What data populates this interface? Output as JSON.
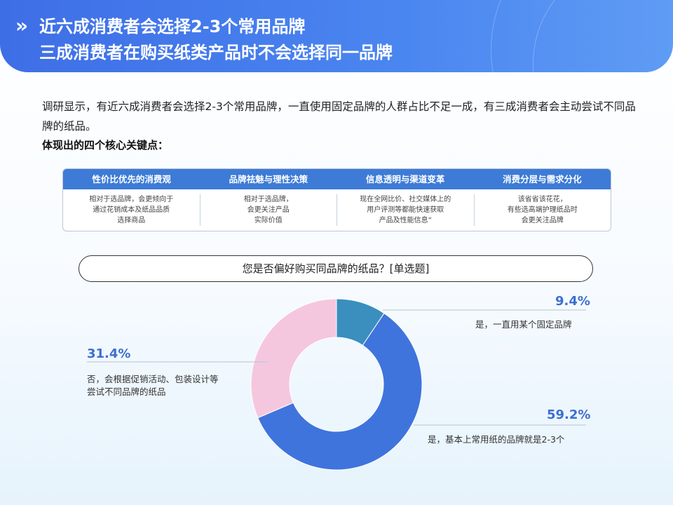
{
  "header": {
    "chevron": "»",
    "title_line1": "近六成消费者会选择2-3个常用品牌",
    "title_line2": "三成消费者在购买纸类产品时不会选择同一品牌"
  },
  "intro": {
    "text": "调研显示，有近六成消费者会选择2-3个常用品牌，一直使用固定品牌的人群占比不足一成，有三成消费者会主动尝试不同品牌的纸品。",
    "subhead": "体现出的四个核心关键点："
  },
  "key_points": [
    {
      "title": "性价比优先的消费观",
      "desc": "相对于选品牌，会更倾向于\n通过花销成本及纸品品质\n选择商品"
    },
    {
      "title": "品牌祛魅与理性决策",
      "desc": "相对于选品牌，\n会更关注产品\n实际价值"
    },
    {
      "title": "信息透明与渠道变革",
      "desc": "现在全网比价、社交媒体上的\n用户评测等都能快速获取\n产品及性能信息”"
    },
    {
      "title": "消费分层与需求分化",
      "desc": "该省省该花花，\n有些选高端护理纸品时\n会更关注品牌"
    }
  ],
  "question": "您是否偏好购买同品牌的纸品？[单选题]",
  "chart_data": {
    "type": "pie",
    "donut": true,
    "title": "您是否偏好购买同品牌的纸品？[单选题]",
    "slices": [
      {
        "label": "是，一直用某个固定品牌",
        "value": 9.4,
        "display": "9.4%",
        "color": "#3a8fbf"
      },
      {
        "label": "是，基本上常用纸的品牌就是2-3个",
        "value": 59.2,
        "display": "59.2%",
        "color": "#3f74dd"
      },
      {
        "label": "否，会根据促销活动、包装设计等尝试不同品牌的纸品",
        "value": 31.4,
        "display": "31.4%",
        "color": "#f5c7df"
      }
    ],
    "label_text": {
      "a": "是，一直用某个固定品牌",
      "b": "是，基本上常用纸的品牌就是2-3个",
      "c_line1": "否，会根据促销活动、包装设计等",
      "c_line2": "尝试不同品牌的纸品"
    }
  }
}
